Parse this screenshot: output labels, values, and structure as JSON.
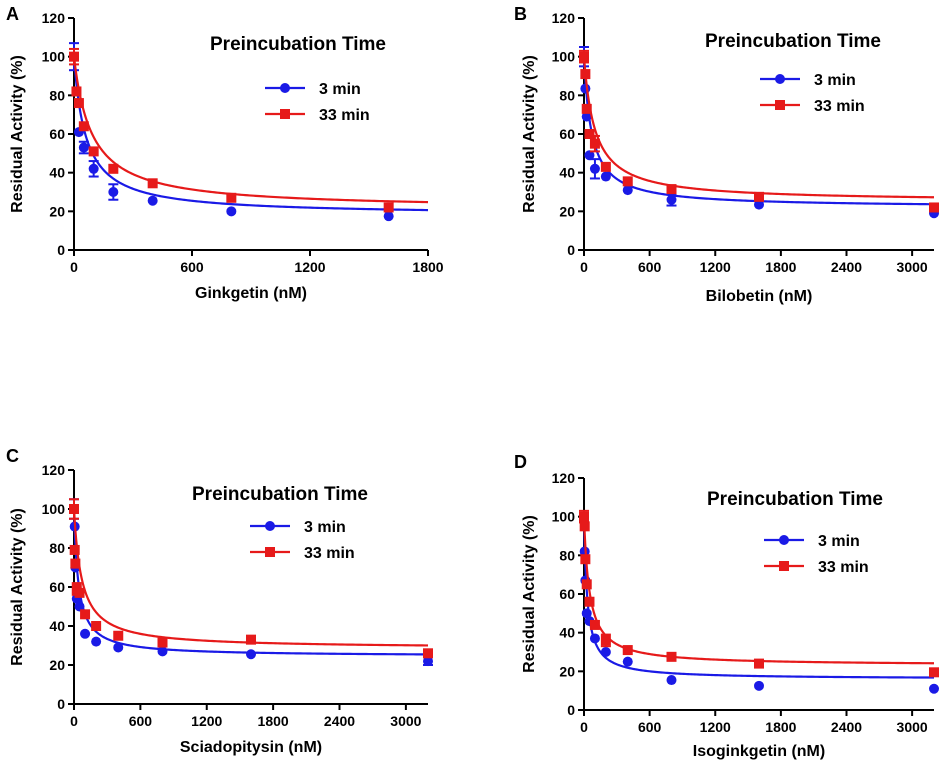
{
  "figure": {
    "colors": {
      "series_3min": "#1a1ae6",
      "series_33min": "#e61a1a"
    }
  },
  "chart_data": [
    {
      "type": "scatter",
      "panel": "A",
      "xlabel": "Ginkgetin (nM)",
      "ylabel": "Residual Activity (%)",
      "legend_title": "Preincubation Time",
      "xlim": [
        0,
        1800
      ],
      "ylim": [
        0,
        120
      ],
      "xticks": [
        0,
        600,
        1200,
        1800
      ],
      "yticks": [
        0,
        20,
        40,
        60,
        80,
        100,
        120
      ],
      "series": [
        {
          "name": "3 min",
          "marker": "circle",
          "color": "#1a1ae6",
          "x": [
            0,
            25,
            50,
            100,
            200,
            400,
            800,
            1600
          ],
          "y": [
            100,
            61,
            53,
            42,
            30,
            25.5,
            20,
            17.5
          ],
          "err": [
            7,
            0,
            3,
            4,
            4,
            0,
            0,
            0
          ],
          "fit": {
            "bottom": 18,
            "ic50": 60
          }
        },
        {
          "name": "33 min",
          "marker": "square",
          "color": "#e61a1a",
          "x": [
            0,
            12.5,
            25,
            50,
            100,
            200,
            400,
            800,
            1600
          ],
          "y": [
            100,
            82,
            76,
            64,
            51,
            42,
            34.5,
            27,
            22
          ],
          "err": [
            4,
            0,
            0,
            0,
            0,
            0,
            0,
            0,
            0
          ],
          "fit": {
            "bottom": 21,
            "ic50": 90
          }
        }
      ]
    },
    {
      "type": "scatter",
      "panel": "B",
      "xlabel": "Bilobetin (nM)",
      "ylabel": "Residual Activity (%)",
      "legend_title": "Preincubation Time",
      "xlim": [
        0,
        3200
      ],
      "ylim": [
        0,
        120
      ],
      "xticks": [
        0,
        600,
        1200,
        1800,
        2400,
        3000
      ],
      "yticks": [
        0,
        20,
        40,
        60,
        80,
        100,
        120
      ],
      "series": [
        {
          "name": "3 min",
          "marker": "circle",
          "color": "#1a1ae6",
          "x": [
            0,
            12.5,
            25,
            50,
            100,
            200,
            400,
            800,
            1600,
            3200
          ],
          "y": [
            100,
            83.5,
            69,
            49,
            42,
            38,
            31,
            26,
            23.5,
            19
          ],
          "err": [
            5,
            0,
            0,
            0,
            5,
            0,
            0,
            3,
            0,
            0
          ],
          "fit": {
            "bottom": 22,
            "ic50": 70
          }
        },
        {
          "name": "33 min",
          "marker": "square",
          "color": "#e61a1a",
          "x": [
            0,
            12.5,
            25,
            50,
            100,
            200,
            400,
            800,
            1600,
            3200
          ],
          "y": [
            100,
            91,
            73,
            60,
            55,
            43,
            35.5,
            31.5,
            27.5,
            22
          ],
          "err": [
            3,
            0,
            0,
            0,
            4,
            0,
            0,
            0,
            0,
            0
          ],
          "fit": {
            "bottom": 25,
            "ic50": 100
          }
        }
      ]
    },
    {
      "type": "scatter",
      "panel": "C",
      "xlabel": "Sciadopitysin (nM)",
      "ylabel": "Residual Activity (%)",
      "legend_title": "Preincubation Time",
      "xlim": [
        0,
        3200
      ],
      "ylim": [
        0,
        120
      ],
      "xticks": [
        0,
        600,
        1200,
        1800,
        2400,
        3000
      ],
      "yticks": [
        0,
        20,
        40,
        60,
        80,
        100,
        120
      ],
      "series": [
        {
          "name": "3 min",
          "marker": "circle",
          "color": "#1a1ae6",
          "x": [
            0,
            6.25,
            12.5,
            25,
            50,
            100,
            200,
            400,
            800,
            1600,
            3200
          ],
          "y": [
            100,
            91,
            70,
            54,
            50,
            36,
            32,
            29,
            27,
            25.5,
            22
          ],
          "err": [
            5,
            0,
            0,
            0,
            0,
            0,
            0,
            0,
            0,
            0,
            2
          ],
          "fit": {
            "bottom": 24.5,
            "ic50": 40
          }
        },
        {
          "name": "33 min",
          "marker": "square",
          "color": "#e61a1a",
          "x": [
            0,
            6.25,
            12.5,
            25,
            50,
            100,
            200,
            400,
            800,
            1600,
            3200
          ],
          "y": [
            100,
            79,
            72,
            59,
            57,
            46,
            40,
            35,
            31.5,
            33,
            26
          ],
          "err": [
            5,
            0,
            0,
            3,
            0,
            0,
            0,
            0,
            0,
            0,
            0
          ],
          "fit": {
            "bottom": 28.5,
            "ic50": 70
          }
        }
      ]
    },
    {
      "type": "scatter",
      "panel": "D",
      "xlabel": "Isoginkgetin (nM)",
      "ylabel": "Residual Activity (%)",
      "legend_title": "Preincubation Time",
      "xlim": [
        0,
        3200
      ],
      "ylim": [
        0,
        120
      ],
      "xticks": [
        0,
        600,
        1200,
        1800,
        2400,
        3000
      ],
      "yticks": [
        0,
        20,
        40,
        60,
        80,
        100,
        120
      ],
      "series": [
        {
          "name": "3 min",
          "marker": "circle",
          "color": "#1a1ae6",
          "x": [
            0,
            6.25,
            12.5,
            25,
            50,
            100,
            200,
            400,
            800,
            1600,
            3200
          ],
          "y": [
            100,
            82,
            67,
            50,
            46,
            37,
            30,
            25,
            15.5,
            12.5,
            11
          ],
          "err": [
            0,
            0,
            0,
            0,
            0,
            0,
            0,
            0,
            0,
            0,
            0
          ],
          "fit": {
            "bottom": 16,
            "ic50": 30
          }
        },
        {
          "name": "33 min",
          "marker": "square",
          "color": "#e61a1a",
          "x": [
            0,
            6.25,
            12.5,
            25,
            50,
            100,
            200,
            400,
            800,
            1600,
            3200
          ],
          "y": [
            100,
            95,
            78,
            65,
            56,
            44,
            36,
            31,
            27.5,
            24,
            19.5
          ],
          "err": [
            3,
            0,
            0,
            0,
            0,
            0,
            3,
            0,
            0,
            0,
            0
          ],
          "fit": {
            "bottom": 23,
            "ic50": 50
          }
        }
      ]
    }
  ]
}
